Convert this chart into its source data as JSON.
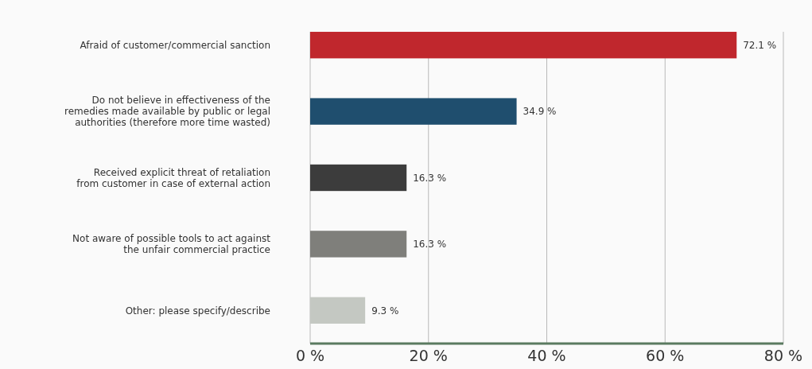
{
  "chart_data": {
    "type": "bar",
    "orientation": "horizontal",
    "categories": [
      "Afraid of customer/commercial sanction",
      "Do not believe in effectiveness of the remedies made available by public or legal authorities (therefore more time wasted)",
      "Received explicit threat of retaliation from customer in case of external action",
      "Not aware of possible tools to act against the unfair commercial practice",
      "Other: please specify/describe"
    ],
    "values": [
      72.1,
      34.9,
      16.3,
      16.3,
      9.3
    ],
    "colors": [
      "#c0272d",
      "#1f4e6e",
      "#3c3c3c",
      "#7f7f7b",
      "#c4c8c2"
    ],
    "value_labels": [
      "72.1 %",
      "34.9 %",
      "16.3 %",
      "16.3 %",
      "9.3 %"
    ],
    "xlim": [
      0,
      80
    ],
    "xticks": [
      {
        "value": 0,
        "label": "0 %"
      },
      {
        "value": 20,
        "label": "20 %"
      },
      {
        "value": 40,
        "label": "40 %"
      },
      {
        "value": 60,
        "label": "60 %"
      },
      {
        "value": 80,
        "label": "80 %"
      }
    ],
    "grid": "x"
  }
}
